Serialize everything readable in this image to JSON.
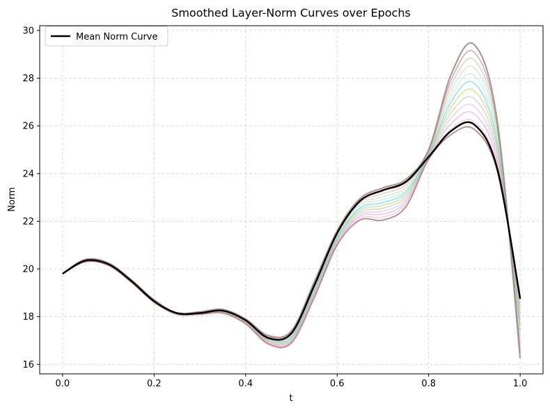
{
  "chart_data": {
    "type": "line",
    "title": "Smoothed Layer-Norm Curves over Epochs",
    "xlabel": "t",
    "ylabel": "Norm",
    "xlim": [
      -0.05,
      1.05
    ],
    "ylim": [
      15.6,
      30.2
    ],
    "xticks": [
      0.0,
      0.2,
      0.4,
      0.6,
      0.8,
      1.0
    ],
    "xtick_labels": [
      "0.0",
      "0.2",
      "0.4",
      "0.6",
      "0.8",
      "1.0"
    ],
    "yticks": [
      16,
      18,
      20,
      22,
      24,
      26,
      28,
      30
    ],
    "ytick_labels": [
      "16",
      "18",
      "20",
      "22",
      "24",
      "26",
      "28",
      "30"
    ],
    "grid": true,
    "legend": {
      "placement": "top-left",
      "entries": [
        {
          "label": "Mean Norm Curve",
          "color": "#000000"
        }
      ]
    },
    "mean_series": {
      "name": "Mean Norm Curve",
      "color": "#000000",
      "x": [
        0.0,
        0.05,
        0.1,
        0.15,
        0.2,
        0.25,
        0.3,
        0.35,
        0.4,
        0.45,
        0.5,
        0.55,
        0.6,
        0.65,
        0.7,
        0.75,
        0.8,
        0.85,
        0.9,
        0.95,
        1.0
      ],
      "y": [
        19.8,
        20.35,
        20.2,
        19.5,
        18.65,
        18.15,
        18.15,
        18.25,
        17.85,
        17.1,
        17.3,
        19.3,
        21.5,
        22.85,
        23.3,
        23.65,
        24.7,
        25.8,
        26.05,
        24.2,
        18.75
      ]
    },
    "epoch_series": {
      "x": [
        0.0,
        0.05,
        0.1,
        0.15,
        0.2,
        0.25,
        0.3,
        0.35,
        0.4,
        0.45,
        0.5,
        0.55,
        0.6,
        0.65,
        0.7,
        0.75,
        0.8,
        0.85,
        0.9,
        0.95,
        1.0
      ],
      "upper_envelope": [
        19.8,
        20.4,
        20.25,
        19.55,
        18.7,
        18.15,
        18.2,
        18.3,
        17.9,
        17.2,
        17.4,
        19.45,
        21.6,
        22.95,
        23.4,
        23.75,
        25.0,
        28.2,
        29.4,
        26.2,
        16.25
      ],
      "lower_envelope": [
        19.8,
        20.3,
        20.15,
        19.45,
        18.6,
        18.1,
        18.1,
        18.15,
        17.7,
        16.85,
        16.9,
        18.8,
        21.0,
        22.05,
        22.05,
        22.6,
        24.6,
        25.65,
        25.85,
        24.1,
        18.8
      ],
      "colors": [
        "#bc8f8f",
        "#d8a7b1",
        "#e377c2",
        "#c9a0dc",
        "#a9a9a9",
        "#bcbd22",
        "#17becf",
        "#9edae5",
        "#98df8a",
        "#c49c94",
        "#8c564b",
        "#aec7e8"
      ],
      "upper_color": "#a97f7f"
    }
  }
}
